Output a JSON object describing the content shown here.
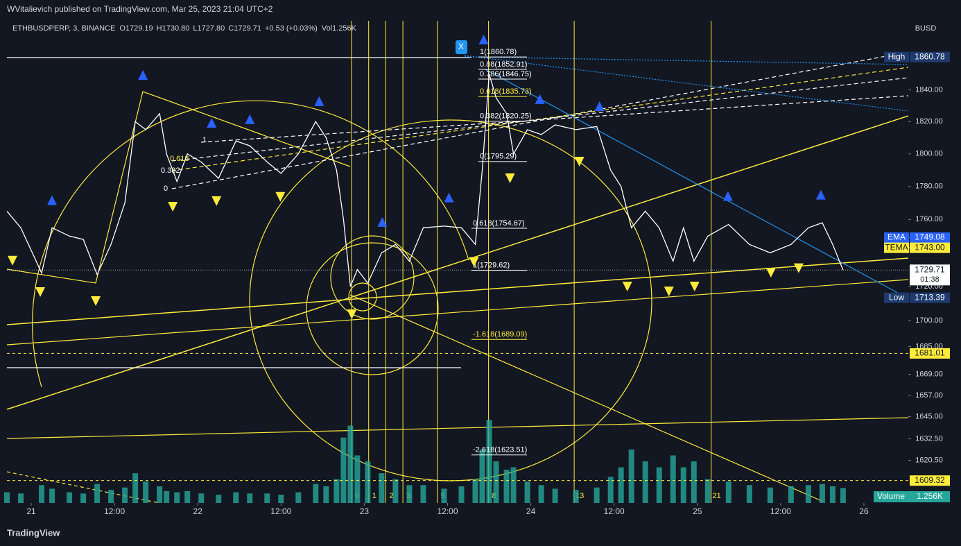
{
  "header": {
    "publisher": "WVitalievich published on TradingView.com, Mar 25, 2023 21:04 UTC+2",
    "symbol": "ETHBUSDPERP, 3, BINANCE",
    "ohlc": [
      {
        "label": "O",
        "value": "1729.19"
      },
      {
        "label": "H",
        "value": "1730.80"
      },
      {
        "label": "L",
        "value": "1727.80"
      },
      {
        "label": "C",
        "value": "1729.71"
      }
    ],
    "change": "+0.53 (+0.03%)",
    "volume_label": "Vol",
    "volume_value": "1.256K"
  },
  "footer": "TradingView",
  "close_button": "X",
  "chart_data": {
    "type": "line",
    "currency": "BUSD",
    "log_scale": true,
    "color": "#ffffff",
    "xlim": [
      -3.5,
      126.4
    ],
    "ylim": [
      1597,
      1884
    ],
    "xticks": [
      {
        "value": 0,
        "label": "21"
      },
      {
        "value": 12,
        "label": "12:00"
      },
      {
        "value": 24,
        "label": "22"
      },
      {
        "value": 36,
        "label": "12:00"
      },
      {
        "value": 48,
        "label": "23"
      },
      {
        "value": 60,
        "label": "12:00"
      },
      {
        "value": 72,
        "label": "24"
      },
      {
        "value": 84,
        "label": "12:00"
      },
      {
        "value": 96,
        "label": "25"
      },
      {
        "value": 108,
        "label": "12:00"
      },
      {
        "value": 120,
        "label": "26"
      }
    ],
    "yticks": [
      {
        "value": 1840,
        "label": "1840.00"
      },
      {
        "value": 1820,
        "label": "1820.00"
      },
      {
        "value": 1800,
        "label": "1800.00"
      },
      {
        "value": 1780,
        "label": "1780.00"
      },
      {
        "value": 1760,
        "label": "1760.00"
      },
      {
        "value": 1720,
        "label": "1720.00"
      },
      {
        "value": 1700,
        "label": "1700.00"
      },
      {
        "value": 1685,
        "label": "1685.00"
      },
      {
        "value": 1669,
        "label": "1669.00"
      },
      {
        "value": 1657,
        "label": "1657.00"
      },
      {
        "value": 1645,
        "label": "1645.00"
      },
      {
        "value": 1632.5,
        "label": "1632.50"
      },
      {
        "value": 1620.5,
        "label": "1620.50"
      }
    ],
    "x": [
      -3.5,
      -1.5,
      1.5,
      3,
      5.5,
      7.5,
      9.5,
      11.5,
      13.5,
      15,
      16.5,
      18.5,
      19.5,
      21,
      22.5,
      24.5,
      27,
      29.5,
      31.5,
      34,
      36,
      38.5,
      41,
      42.5,
      44,
      45,
      46,
      47,
      48.5,
      50.5,
      52.5,
      54.5,
      56.5,
      59.5,
      62,
      64,
      65,
      66,
      67,
      68.5,
      69.5,
      71.5,
      73.5,
      75.5,
      78.5,
      81.5,
      83.5,
      85,
      86.5,
      88.5,
      90.5,
      92.5,
      94,
      95.5,
      97.5,
      100.5,
      103.5,
      106.5,
      109.5,
      112,
      114,
      115.5,
      117
    ],
    "values": [
      1765,
      1755,
      1728,
      1755,
      1750,
      1748,
      1727,
      1745,
      1770,
      1820,
      1815,
      1825,
      1800,
      1783,
      1800,
      1795,
      1785,
      1808,
      1805,
      1795,
      1788,
      1800,
      1820,
      1810,
      1790,
      1760,
      1720,
      1730,
      1722,
      1740,
      1745,
      1735,
      1755,
      1756,
      1755,
      1745,
      1790,
      1850,
      1835,
      1825,
      1800,
      1815,
      1812,
      1818,
      1815,
      1817,
      1790,
      1780,
      1755,
      1765,
      1755,
      1735,
      1755,
      1735,
      1750,
      1757,
      1745,
      1740,
      1745,
      1755,
      1758,
      1745,
      1729.71
    ],
    "volume": {
      "name": "Volume",
      "color": "#26a69a",
      "value_label": "1.256K",
      "values": [
        900,
        800,
        1500,
        1200,
        900,
        800,
        1600,
        1100,
        1300,
        2500,
        1800,
        1400,
        1000,
        900,
        1000,
        800,
        700,
        900,
        800,
        800,
        700,
        900,
        1600,
        1400,
        2000,
        5500,
        6500,
        4000,
        3500,
        2500,
        2000,
        1500,
        1500,
        1200,
        1400,
        2000,
        4500,
        7000,
        3500,
        2800,
        3000,
        1800,
        1500,
        1200,
        1100,
        1300,
        2200,
        3000,
        4500,
        3500,
        3000,
        4000,
        3000,
        3500,
        2000,
        1800,
        1500,
        1300,
        1400,
        1500,
        1600,
        1400,
        1256
      ]
    },
    "up_signals": {
      "color": "#2962ff",
      "x": [
        3,
        16.1,
        26,
        31.5,
        41.5,
        50.6,
        60.2,
        65.2,
        73.3,
        81.9,
        100.4,
        113.8
      ],
      "values": [
        1771.6,
        1849.4,
        1819.3,
        1821.5,
        1832.8,
        1758.5,
        1773.3,
        1872.0,
        1834.1,
        1829.7,
        1774.2,
        1775.0
      ]
    },
    "down_signals": {
      "color": "#ffeb3b",
      "x": [
        -2.7,
        1.3,
        9.3,
        20.4,
        26.7,
        35.9,
        46.2,
        63.8,
        69,
        79,
        85.9,
        91.9,
        95.6,
        106.6,
        110.6
      ],
      "values": [
        1735.3,
        1716.7,
        1711.4,
        1767.7,
        1771.1,
        1773.7,
        1703.7,
        1734.5,
        1785.0,
        1795.2,
        1720.0,
        1717.1,
        1720.0,
        1728.2,
        1730.8
      ]
    },
    "price_labels": [
      {
        "name": "High",
        "value": 1860.78,
        "label": "1860.78",
        "color": "#1e3a6e",
        "text_color": "#ffffff"
      },
      {
        "name": "EMA",
        "value": 1749.08,
        "label": "1749.08",
        "color": "#2962ff",
        "text_color": "#ffffff"
      },
      {
        "name": "TEMA",
        "value": 1743.0,
        "label": "1743.00",
        "color": "#ffeb3b",
        "text_color": "#131722"
      },
      {
        "value": 1729.71,
        "label": "1729.71",
        "countdown": "01:38",
        "color": "#ffffff",
        "text_color": "#131722"
      },
      {
        "name": "Low",
        "value": 1713.39,
        "label": "1713.39",
        "color": "#1e3a6e",
        "text_color": "#ffffff"
      },
      {
        "value": 1681.01,
        "label": "1681.01",
        "color": "#ffeb3b",
        "text_color": "#131722",
        "dashed": true
      },
      {
        "value": 1609.32,
        "label": "1609.32",
        "color": "#ffeb3b",
        "text_color": "#131722",
        "dashed": true
      }
    ],
    "fib_retracement": [
      {
        "label": "1(1860.78)",
        "value": 1860.78,
        "color": "#ffffff"
      },
      {
        "label": "0.88(1852.91)",
        "value": 1852.91,
        "color": "#ffffff"
      },
      {
        "label": "0.786(1846.75)",
        "value": 1846.75,
        "color": "#ffffff"
      },
      {
        "label": "0.618(1835.73)",
        "value": 1835.73,
        "color": "#ffeb3b"
      },
      {
        "label": "0.382(1820.25)",
        "value": 1820.25,
        "color": "#ffffff"
      },
      {
        "label": "0(1795.29)",
        "value": 1795.29,
        "color": "#ffffff"
      }
    ],
    "fib_extension": [
      {
        "label": "0.618(1754.67)",
        "value": 1754.67,
        "color": "#ffffff"
      },
      {
        "label": "1(1729.62)",
        "value": 1729.62,
        "color": "#ffffff"
      },
      {
        "label": "-1.618(1689.09)",
        "value": 1689.09,
        "color": "#ffeb3b"
      },
      {
        "label": "-2.618(1623.51)",
        "value": 1623.51,
        "color": "#ffffff"
      }
    ],
    "channel_labels": [
      "1",
      "0.618",
      "0.382",
      "0"
    ],
    "time_zones": [
      0,
      1,
      2,
      3,
      5,
      8,
      13,
      21
    ]
  }
}
